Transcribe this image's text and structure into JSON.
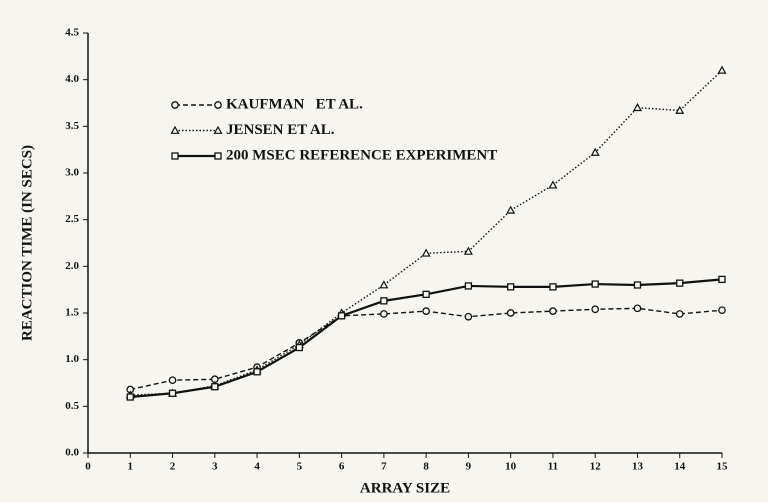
{
  "chart_data": {
    "type": "line",
    "x_label": "ARRAY SIZE",
    "y_label": "REACTION TIME (IN SECS)",
    "x": [
      1,
      2,
      3,
      4,
      5,
      6,
      7,
      8,
      9,
      10,
      11,
      12,
      13,
      14,
      15
    ],
    "series": [
      {
        "name": "KAUFMAN   ET AL.",
        "color": "#111111",
        "dash": "dashed",
        "marker": "circle",
        "values": [
          0.68,
          0.78,
          0.79,
          0.92,
          1.18,
          1.47,
          1.49,
          1.52,
          1.46,
          1.5,
          1.52,
          1.54,
          1.55,
          1.49,
          1.53
        ]
      },
      {
        "name": "JENSEN ET AL.",
        "color": "#111111",
        "dash": "dotted",
        "marker": "triangle",
        "values": [
          0.62,
          0.64,
          0.72,
          0.89,
          1.16,
          1.5,
          1.8,
          2.14,
          2.16,
          2.6,
          2.87,
          3.22,
          3.7,
          3.67,
          4.1
        ]
      },
      {
        "name": "200 MSEC REFERENCE EXPERIMENT",
        "color": "#111111",
        "dash": "solid",
        "marker": "square",
        "values": [
          0.6,
          0.64,
          0.71,
          0.87,
          1.13,
          1.47,
          1.63,
          1.7,
          1.79,
          1.78,
          1.78,
          1.81,
          1.8,
          1.82,
          1.86
        ]
      }
    ],
    "xlim": [
      0,
      15
    ],
    "xticks": [
      0,
      1,
      2,
      3,
      4,
      5,
      6,
      7,
      8,
      9,
      10,
      11,
      12,
      13,
      14,
      15
    ],
    "ylim": [
      0,
      4.5
    ],
    "yticks": [
      {
        "value": 0,
        "label": "0.0"
      },
      0.5,
      {
        "value": 1,
        "label": "1.0"
      },
      1.5,
      {
        "value": 2,
        "label": "2.0"
      },
      2.5,
      {
        "value": 3,
        "label": "3.0"
      },
      3.5,
      {
        "value": 4,
        "label": "4.0"
      },
      4.5
    ],
    "legend": "upper-left",
    "grid": false
  }
}
